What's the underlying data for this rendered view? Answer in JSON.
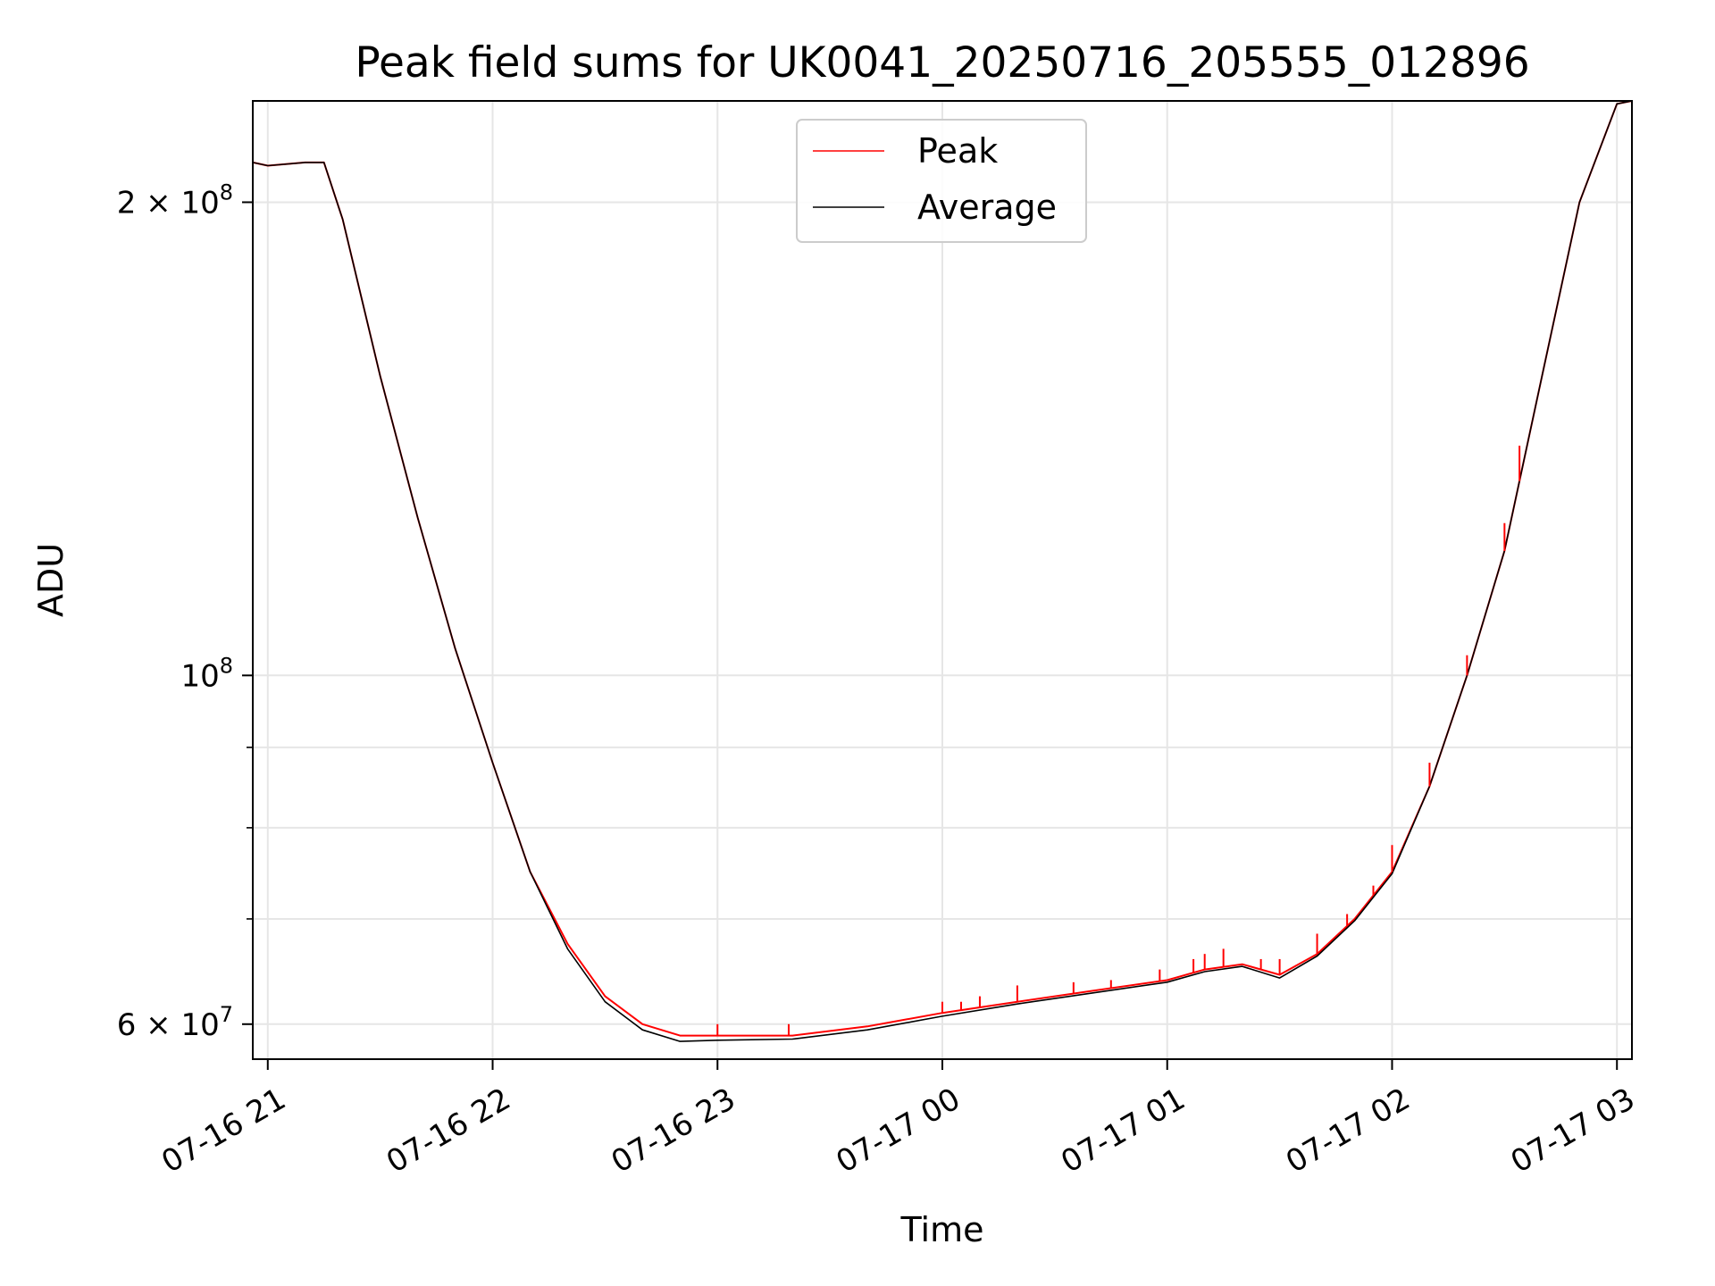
{
  "chart_data": {
    "type": "line",
    "title": "Peak field sums for UK0041_20250716_205555_012896",
    "xlabel": "Time",
    "ylabel": "ADU",
    "x_tick_labels": [
      "07-16 21",
      "07-16 22",
      "07-16 23",
      "07-17 00",
      "07-17 01",
      "07-17 02",
      "07-17 03"
    ],
    "y_tick_labels": [
      {
        "value": 60000000,
        "base": "6",
        "times": "×",
        "power_base": "10",
        "exponent": "7"
      },
      {
        "value": 100000000,
        "base": "",
        "times": "",
        "power_base": "10",
        "exponent": "8"
      },
      {
        "value": 200000000,
        "base": "2",
        "times": "×",
        "power_base": "10",
        "exponent": "8"
      }
    ],
    "y_scale": "log",
    "ylim": [
      57000000,
      232000000
    ],
    "xlim": [
      "2025-07-16 20:56",
      "2025-07-17 03:04"
    ],
    "grid": true,
    "legend_position": "upper center",
    "series": [
      {
        "name": "Peak",
        "color": "#ff0000",
        "x": [
          "2025-07-16 20:56",
          "2025-07-16 21:00",
          "2025-07-16 21:10",
          "2025-07-16 21:15",
          "2025-07-16 21:20",
          "2025-07-16 21:30",
          "2025-07-16 21:40",
          "2025-07-16 21:50",
          "2025-07-16 22:00",
          "2025-07-16 22:10",
          "2025-07-16 22:20",
          "2025-07-16 22:30",
          "2025-07-16 22:40",
          "2025-07-16 22:50",
          "2025-07-16 23:00",
          "2025-07-16 23:20",
          "2025-07-16 23:40",
          "2025-07-17 00:00",
          "2025-07-17 00:20",
          "2025-07-17 00:40",
          "2025-07-17 01:00",
          "2025-07-17 01:10",
          "2025-07-17 01:20",
          "2025-07-17 01:30",
          "2025-07-17 01:40",
          "2025-07-17 01:50",
          "2025-07-17 02:00",
          "2025-07-17 02:10",
          "2025-07-17 02:20",
          "2025-07-17 02:30",
          "2025-07-17 02:40",
          "2025-07-17 02:50",
          "2025-07-17 03:00",
          "2025-07-17 03:04"
        ],
        "values": [
          212000000,
          211000000,
          212000000,
          212000000,
          195000000,
          155000000,
          126000000,
          104000000,
          88000000,
          75000000,
          67500000,
          62500000,
          60000000,
          59000000,
          59000000,
          59000000,
          59800000,
          61000000,
          62000000,
          63000000,
          64000000,
          65000000,
          65500000,
          64500000,
          66500000,
          70000000,
          75000000,
          85000000,
          100000000,
          120000000,
          155000000,
          200000000,
          231000000,
          232000000
        ],
        "spikes": [
          {
            "x": "2025-07-16 23:00",
            "value": 60000000
          },
          {
            "x": "2025-07-16 23:19",
            "value": 60000000
          },
          {
            "x": "2025-07-17 00:00",
            "value": 62000000
          },
          {
            "x": "2025-07-17 00:05",
            "value": 62000000
          },
          {
            "x": "2025-07-17 00:10",
            "value": 62500000
          },
          {
            "x": "2025-07-17 00:20",
            "value": 63500000
          },
          {
            "x": "2025-07-17 00:35",
            "value": 63800000
          },
          {
            "x": "2025-07-17 00:45",
            "value": 64000000
          },
          {
            "x": "2025-07-17 00:58",
            "value": 65000000
          },
          {
            "x": "2025-07-17 01:07",
            "value": 66000000
          },
          {
            "x": "2025-07-17 01:10",
            "value": 66500000
          },
          {
            "x": "2025-07-17 01:15",
            "value": 67000000
          },
          {
            "x": "2025-07-17 01:25",
            "value": 66000000
          },
          {
            "x": "2025-07-17 01:30",
            "value": 66000000
          },
          {
            "x": "2025-07-17 01:40",
            "value": 68500000
          },
          {
            "x": "2025-07-17 01:48",
            "value": 70500000
          },
          {
            "x": "2025-07-17 01:55",
            "value": 73500000
          },
          {
            "x": "2025-07-17 02:00",
            "value": 78000000
          },
          {
            "x": "2025-07-17 02:10",
            "value": 88000000
          },
          {
            "x": "2025-07-17 02:20",
            "value": 103000000
          },
          {
            "x": "2025-07-17 02:30",
            "value": 125000000
          },
          {
            "x": "2025-07-17 02:34",
            "value": 140000000
          }
        ]
      },
      {
        "name": "Average",
        "color": "#000000",
        "x": [
          "2025-07-16 20:56",
          "2025-07-16 21:00",
          "2025-07-16 21:10",
          "2025-07-16 21:15",
          "2025-07-16 21:20",
          "2025-07-16 21:30",
          "2025-07-16 21:40",
          "2025-07-16 21:50",
          "2025-07-16 22:00",
          "2025-07-16 22:10",
          "2025-07-16 22:20",
          "2025-07-16 22:30",
          "2025-07-16 22:40",
          "2025-07-16 22:50",
          "2025-07-16 23:00",
          "2025-07-16 23:20",
          "2025-07-16 23:40",
          "2025-07-17 00:00",
          "2025-07-17 00:20",
          "2025-07-17 00:40",
          "2025-07-17 01:00",
          "2025-07-17 01:10",
          "2025-07-17 01:20",
          "2025-07-17 01:30",
          "2025-07-17 01:40",
          "2025-07-17 01:50",
          "2025-07-17 02:00",
          "2025-07-17 02:10",
          "2025-07-17 02:20",
          "2025-07-17 02:30",
          "2025-07-17 02:40",
          "2025-07-17 02:50",
          "2025-07-17 03:00",
          "2025-07-17 03:04"
        ],
        "values": [
          212000000,
          211000000,
          212000000,
          212000000,
          195000000,
          155000000,
          126000000,
          104000000,
          88000000,
          75000000,
          67000000,
          62000000,
          59500000,
          58500000,
          58600000,
          58700000,
          59500000,
          60700000,
          61800000,
          62800000,
          63800000,
          64800000,
          65300000,
          64200000,
          66300000,
          69800000,
          74800000,
          85000000,
          100000000,
          120000000,
          155000000,
          200000000,
          231000000,
          232000000
        ]
      }
    ]
  }
}
